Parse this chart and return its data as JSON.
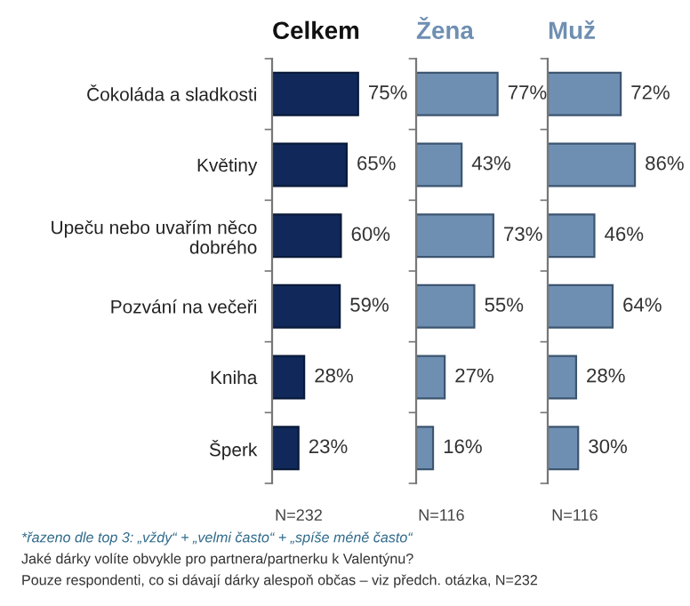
{
  "chart_data": [
    {
      "type": "bar",
      "orientation": "horizontal",
      "title": "Celkem",
      "categories": [
        "Čokoláda a sladkosti",
        "Květiny",
        "Upeču nebo uvařím něco dobrého",
        "Pozvání na večeři",
        "Kniha",
        "Šperk"
      ],
      "series": [
        {
          "color": "#10295a",
          "values": [
            75,
            65,
            60,
            59,
            28,
            23
          ],
          "value_labels": [
            "75%",
            "65%",
            "60%",
            "59%",
            "28%",
            "23%"
          ]
        }
      ],
      "tick_labels": "y",
      "annotations": [
        "N=232",
        "*řazeno dle top 3: „vždy“ + „velmi často“ + „spíše méně často“",
        "Jaké dárky volíte obvykle pro partnera/partnerku k Valentýnu?",
        "Pouze respondenti, co si dávají dárky alespoň občas – viz předch. otázka, N=232"
      ]
    },
    {
      "type": "bar",
      "orientation": "horizontal",
      "title": "Žena",
      "categories": [
        null,
        null,
        null,
        null,
        null,
        null
      ],
      "series": [
        {
          "color": "#6f8fb2",
          "values": [
            77,
            43,
            73,
            55,
            27,
            16
          ],
          "value_labels": [
            "77%",
            "43%",
            "73%",
            "55%",
            "27%",
            "16%"
          ]
        }
      ],
      "tick_labels": false,
      "annotations": [
        "N=116"
      ]
    },
    {
      "type": "bar",
      "orientation": "horizontal",
      "title": "Muž",
      "categories": [
        null,
        null,
        null,
        null,
        null,
        null
      ],
      "series": [
        {
          "color": "#6f8fb2",
          "values": [
            72,
            86,
            46,
            64,
            28,
            30
          ],
          "value_labels": [
            "72%",
            "86%",
            "46%",
            "64%",
            "28%",
            "30%"
          ]
        }
      ],
      "tick_labels": false,
      "annotations": [
        "N=116"
      ]
    }
  ]
}
